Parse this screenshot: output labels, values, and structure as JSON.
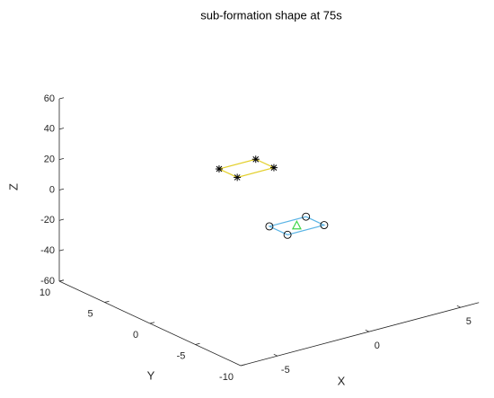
{
  "chart_data": {
    "type": "scatter3d",
    "title": "sub-formation shape at 75s",
    "xlabel": "X",
    "ylabel": "Y",
    "zlabel": "Z",
    "xlim": [
      -7,
      6
    ],
    "ylim": [
      -10,
      10
    ],
    "zlim": [
      -60,
      60
    ],
    "xticks": [
      -5,
      0,
      5
    ],
    "yticks": [
      -10,
      -5,
      0,
      5,
      10
    ],
    "zticks": [
      -60,
      -40,
      -20,
      0,
      20,
      40,
      60
    ],
    "series": [
      {
        "color": "#e3cf2a",
        "marker": "star",
        "closed": true,
        "x": [
          -1,
          1,
          1,
          -1
        ],
        "y": [
          4.5,
          4.5,
          2.5,
          2.5
        ],
        "z": [
          10,
          10,
          10,
          10
        ]
      },
      {
        "color": "#5ab4e5",
        "marker": "circle",
        "closed": true,
        "x": [
          1,
          3,
          3,
          1
        ],
        "y": [
          3,
          3,
          1,
          1
        ],
        "z": [
          -30,
          -30,
          -30,
          -30
        ]
      },
      {
        "color": "#3fd64a",
        "marker": "triangle",
        "closed": false,
        "x": [
          2
        ],
        "y": [
          2
        ],
        "z": [
          -30
        ]
      }
    ]
  }
}
